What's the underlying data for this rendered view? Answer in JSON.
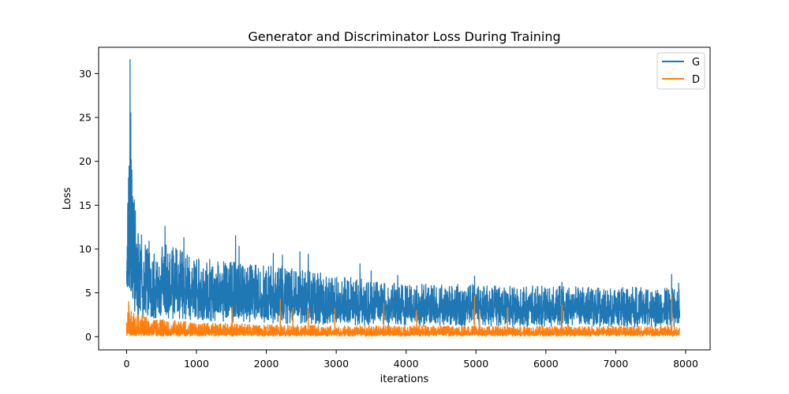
{
  "chart_data": {
    "type": "line",
    "title": "Generator and Discriminator Loss During Training",
    "xlabel": "iterations",
    "ylabel": "Loss",
    "xlim": [
      -400,
      8350
    ],
    "ylim": [
      -1.5,
      33
    ],
    "xticks": [
      0,
      1000,
      2000,
      3000,
      4000,
      5000,
      6000,
      7000,
      8000
    ],
    "yticks": [
      0,
      5,
      10,
      15,
      20,
      25,
      30
    ],
    "grid": false,
    "legend_position": "top-right",
    "series_stats": {
      "num_points": 7915,
      "series": [
        {
          "name": "G",
          "color": "#1f77b4",
          "start": 7.5,
          "peak_x": 50,
          "peak_y": 31.6,
          "envelope": [
            [
              0,
              6.5
            ],
            [
              30,
              22
            ],
            [
              50,
              31.6
            ],
            [
              80,
              20
            ],
            [
              150,
              12.5
            ],
            [
              300,
              11
            ],
            [
              600,
              10.5
            ],
            [
              1000,
              9.0
            ],
            [
              1500,
              8.5
            ],
            [
              2200,
              8.2
            ],
            [
              3000,
              7.0
            ],
            [
              4000,
              6.0
            ],
            [
              5000,
              6.0
            ],
            [
              6000,
              5.8
            ],
            [
              7000,
              5.7
            ],
            [
              7900,
              5.5
            ]
          ],
          "floor": [
            [
              0,
              5.5
            ],
            [
              150,
              2.0
            ],
            [
              1000,
              1.8
            ],
            [
              2000,
              1.5
            ],
            [
              4000,
              1.2
            ],
            [
              7900,
              1.0
            ]
          ],
          "baseline": [
            [
              0,
              8.0
            ],
            [
              100,
              9.0
            ],
            [
              300,
              5.5
            ],
            [
              1000,
              5.0
            ],
            [
              2000,
              4.2
            ],
            [
              3000,
              3.5
            ],
            [
              4000,
              3.2
            ],
            [
              5000,
              3.2
            ],
            [
              6000,
              3.2
            ],
            [
              7000,
              3.2
            ],
            [
              7900,
              3.0
            ]
          ],
          "spikes": [
            {
              "x": 550,
              "y": 12.6
            },
            {
              "x": 820,
              "y": 11.3
            },
            {
              "x": 1560,
              "y": 11.5
            },
            {
              "x": 1610,
              "y": 10.3
            },
            {
              "x": 2100,
              "y": 9.5
            },
            {
              "x": 2230,
              "y": 9.3
            },
            {
              "x": 2480,
              "y": 9.7
            },
            {
              "x": 2600,
              "y": 9.4
            },
            {
              "x": 3340,
              "y": 8.3
            },
            {
              "x": 3500,
              "y": 7.5
            },
            {
              "x": 3880,
              "y": 7.0
            },
            {
              "x": 4980,
              "y": 6.9
            },
            {
              "x": 6230,
              "y": 6.2
            },
            {
              "x": 7800,
              "y": 7.1
            },
            {
              "x": 7900,
              "y": 6.1
            }
          ]
        },
        {
          "name": "D",
          "color": "#ff7f0e",
          "start": 1.6,
          "peak_x": 30,
          "peak_y": 4.0,
          "envelope": [
            [
              0,
              1.0
            ],
            [
              30,
              4.0
            ],
            [
              60,
              3.0
            ],
            [
              150,
              2.6
            ],
            [
              500,
              2.0
            ],
            [
              1000,
              1.6
            ],
            [
              2000,
              1.4
            ],
            [
              3000,
              1.3
            ],
            [
              5000,
              1.2
            ],
            [
              7900,
              1.2
            ]
          ],
          "floor": [
            [
              0,
              0.05
            ],
            [
              7900,
              0.05
            ]
          ],
          "baseline": [
            [
              0,
              0.6
            ],
            [
              500,
              0.5
            ],
            [
              2000,
              0.45
            ],
            [
              5000,
              0.45
            ],
            [
              7900,
              0.45
            ]
          ],
          "spikes": [
            {
              "x": 2200,
              "y": 4.3
            },
            {
              "x": 4980,
              "y": 4.6
            },
            {
              "x": 3680,
              "y": 3.8
            },
            {
              "x": 1510,
              "y": 3.4
            },
            {
              "x": 6230,
              "y": 3.6
            },
            {
              "x": 7800,
              "y": 4.9
            },
            {
              "x": 2380,
              "y": 3.3
            },
            {
              "x": 2980,
              "y": 3.2
            },
            {
              "x": 4150,
              "y": 3.0
            },
            {
              "x": 5450,
              "y": 3.3
            },
            {
              "x": 5050,
              "y": 3.1
            },
            {
              "x": 2600,
              "y": 3.2
            },
            {
              "x": 7930,
              "y": 2.6
            }
          ]
        }
      ]
    }
  }
}
